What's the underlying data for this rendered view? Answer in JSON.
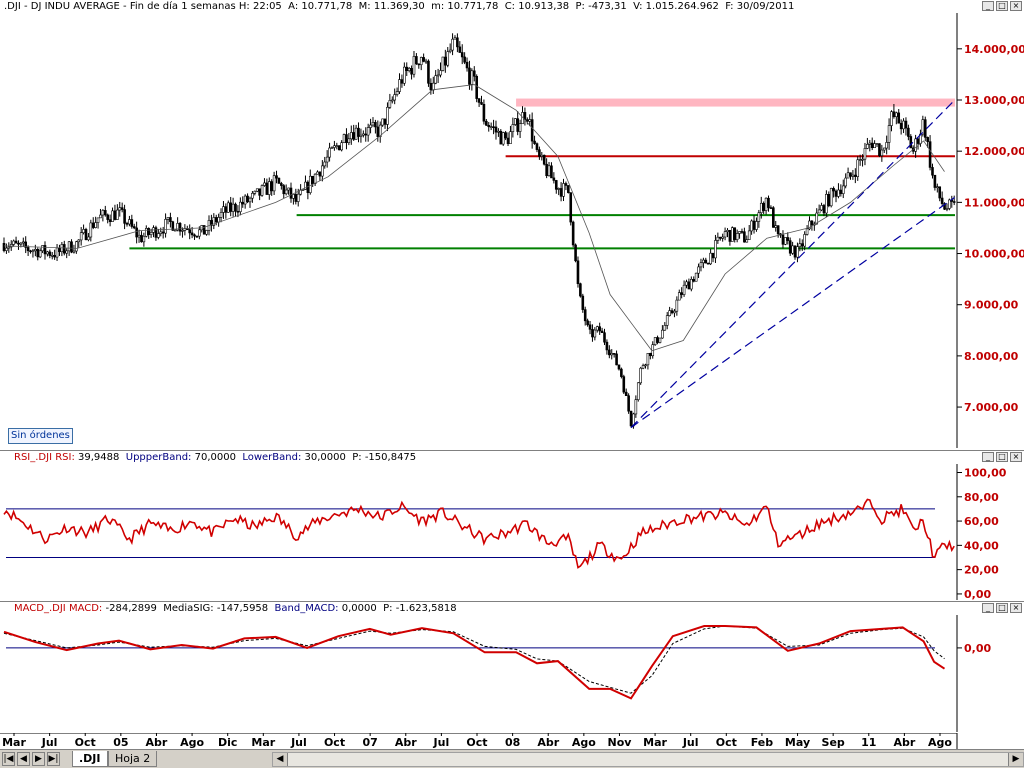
{
  "price_header": {
    "symbol": ".DJI",
    "description": "DJ INDU AVERAGE",
    "period": "Fin de día 1 semanas",
    "H_label": "H:",
    "H": "22:05",
    "A_label": "A:",
    "A": "10.771,78",
    "M_label": "M:",
    "M": "11.369,30",
    "m_label": "m:",
    "m": "10.771,78",
    "C_label": "C:",
    "C": "10.913,38",
    "P_label": "P:",
    "P": "-473,31",
    "V_label": "V:",
    "V": "1.015.264.962",
    "F_label": "F:",
    "F": "30/09/2011"
  },
  "rsi_header": {
    "name": "RSI_.DJI",
    "rsi_label": "RSI:",
    "rsi": "39,9488",
    "upper_label": "UppperBand:",
    "upper": "70,0000",
    "lower_label": "LowerBand:",
    "lower": "30,0000",
    "p_label": "P:",
    "p": "-150,8475"
  },
  "macd_header": {
    "name": "MACD_.DJI",
    "macd_label": "MACD:",
    "macd": "-284,2899",
    "sig_label": "MediaSIG:",
    "sig": "-147,5958",
    "band_label": "Band_MACD:",
    "band": "0,0000",
    "p_label": "P:",
    "p": "-1.623,5818"
  },
  "window_buttons": {
    "minimize": "_",
    "maximize": "□",
    "close": "×"
  },
  "orders_button": "Sin órdenes",
  "sheet_tabs": [
    ".DJI",
    "Hoja 2"
  ],
  "nav_glyphs": [
    "|◀",
    "◀",
    "▶",
    "▶|"
  ],
  "colors": {
    "price_axis_text": "#c00000",
    "candle": "#000000",
    "resistance_pink": "#ffb6c1",
    "resistance_red": "#c00000",
    "support_green": "#008000",
    "trend_blue": "#0000a0",
    "rsi_line": "#d00000",
    "band_line": "#000080",
    "macd_line": "#d00000",
    "signal_line": "#000000"
  },
  "x_axis_labels": [
    "Mar",
    "Jul",
    "Oct",
    "05",
    "Abr",
    "Ago",
    "Dic",
    "Mar",
    "Jul",
    "Oct",
    "07",
    "Abr",
    "Jul",
    "Oct",
    "08",
    "Abr",
    "Ago",
    "Nov",
    "Mar",
    "Jul",
    "Oct",
    "Feb",
    "May",
    "Sep",
    "11",
    "Abr",
    "Ago"
  ],
  "chart_data": [
    {
      "type": "candlestick",
      "title": "DJ INDU AVERAGE",
      "ylim": [
        6200,
        14700
      ],
      "y_ticks": [
        "14.000,00",
        "13.000,00",
        "12.000,00",
        "11.000,00",
        "10.000,00",
        "9.000,00",
        "8.000,00",
        "7.000,00"
      ],
      "y_tick_values": [
        14000,
        13000,
        12000,
        11000,
        10000,
        9000,
        8000,
        7000
      ],
      "close_path": [
        [
          "2004-03",
          10200
        ],
        [
          "2004-05",
          10100
        ],
        [
          "2004-08",
          10000
        ],
        [
          "2004-10",
          10200
        ],
        [
          "2004-12",
          10700
        ],
        [
          "2005-02",
          10800
        ],
        [
          "2005-04",
          10300
        ],
        [
          "2005-07",
          10600
        ],
        [
          "2005-10",
          10400
        ],
        [
          "2005-12",
          10800
        ],
        [
          "2006-03",
          11100
        ],
        [
          "2006-05",
          11400
        ],
        [
          "2006-07",
          11000
        ],
        [
          "2006-09",
          11600
        ],
        [
          "2006-12",
          12400
        ],
        [
          "2007-03",
          12400
        ],
        [
          "2007-05",
          13400
        ],
        [
          "2007-07",
          13900
        ],
        [
          "2007-08",
          13200
        ],
        [
          "2007-10",
          14100
        ],
        [
          "2007-12",
          13300
        ],
        [
          "2008-01",
          12600
        ],
        [
          "2008-03",
          12200
        ],
        [
          "2008-05",
          12800
        ],
        [
          "2008-06",
          11900
        ],
        [
          "2008-08",
          11300
        ],
        [
          "2008-09",
          11200
        ],
        [
          "2008-10",
          9200
        ],
        [
          "2008-11",
          8400
        ],
        [
          "2008-12",
          8500
        ],
        [
          "2009-02",
          7700
        ],
        [
          "2009-03",
          6700
        ],
        [
          "2009-04",
          7800
        ],
        [
          "2009-06",
          8500
        ],
        [
          "2009-08",
          9300
        ],
        [
          "2009-10",
          9800
        ],
        [
          "2009-12",
          10400
        ],
        [
          "2010-02",
          10300
        ],
        [
          "2010-04",
          11100
        ],
        [
          "2010-05",
          10300
        ],
        [
          "2010-07",
          10000
        ],
        [
          "2010-08",
          10500
        ],
        [
          "2010-10",
          11100
        ],
        [
          "2010-12",
          11500
        ],
        [
          "2011-02",
          12200
        ],
        [
          "2011-03",
          12000
        ],
        [
          "2011-04",
          12700
        ],
        [
          "2011-05",
          12500
        ],
        [
          "2011-06",
          12000
        ],
        [
          "2011-07",
          12600
        ],
        [
          "2011-08",
          11300
        ],
        [
          "2011-09",
          10900
        ]
      ],
      "moving_average": [
        [
          "2004-03",
          10150
        ],
        [
          "2004-10",
          10100
        ],
        [
          "2005-04",
          10450
        ],
        [
          "2005-10",
          10500
        ],
        [
          "2006-05",
          11000
        ],
        [
          "2006-10",
          11500
        ],
        [
          "2007-03",
          12300
        ],
        [
          "2007-08",
          13200
        ],
        [
          "2007-12",
          13300
        ],
        [
          "2008-04",
          12800
        ],
        [
          "2008-08",
          11900
        ],
        [
          "2008-11",
          10400
        ],
        [
          "2009-01",
          9200
        ],
        [
          "2009-05",
          8100
        ],
        [
          "2009-08",
          8300
        ],
        [
          "2009-12",
          9600
        ],
        [
          "2010-04",
          10300
        ],
        [
          "2010-08",
          10500
        ],
        [
          "2010-12",
          11000
        ],
        [
          "2011-04",
          11700
        ],
        [
          "2011-07",
          12200
        ],
        [
          "2011-09",
          11600
        ]
      ],
      "horizontal_levels": [
        {
          "role": "resistance-zone",
          "value": 12950,
          "start": "2008-04"
        },
        {
          "role": "resistance",
          "value": 11900,
          "start": "2008-03"
        },
        {
          "role": "support",
          "value": 10750,
          "start": "2006-07"
        },
        {
          "role": "support",
          "value": 10100,
          "start": "2005-03"
        }
      ],
      "trend_lines": [
        {
          "from": [
            "2009-03",
            6600
          ],
          "to": [
            "2011-09",
            12800
          ]
        },
        {
          "from": [
            "2009-03",
            6600
          ],
          "to": [
            "2011-09",
            10900
          ]
        }
      ]
    },
    {
      "type": "line",
      "title": "RSI_.DJI",
      "ylim": [
        -5,
        107
      ],
      "y_ticks": [
        "100,00",
        "80,00",
        "60,00",
        "40,00",
        "20,00",
        "0,00"
      ],
      "y_tick_values": [
        100,
        80,
        60,
        40,
        20,
        0
      ],
      "bands": [
        70,
        30
      ],
      "series": [
        {
          "name": "RSI",
          "points": [
            [
              "2004-03",
              70
            ],
            [
              "2004-05",
              58
            ],
            [
              "2004-07",
              45
            ],
            [
              "2004-09",
              55
            ],
            [
              "2004-11",
              50
            ],
            [
              "2005-01",
              62
            ],
            [
              "2005-03",
              45
            ],
            [
              "2005-05",
              58
            ],
            [
              "2005-07",
              52
            ],
            [
              "2005-09",
              60
            ],
            [
              "2005-11",
              50
            ],
            [
              "2006-01",
              62
            ],
            [
              "2006-03",
              55
            ],
            [
              "2006-05",
              64
            ],
            [
              "2006-07",
              48
            ],
            [
              "2006-09",
              60
            ],
            [
              "2006-11",
              66
            ],
            [
              "2007-01",
              70
            ],
            [
              "2007-03",
              63
            ],
            [
              "2007-05",
              72
            ],
            [
              "2007-07",
              60
            ],
            [
              "2007-09",
              67
            ],
            [
              "2007-11",
              55
            ],
            [
              "2008-01",
              45
            ],
            [
              "2008-03",
              50
            ],
            [
              "2008-05",
              58
            ],
            [
              "2008-07",
              42
            ],
            [
              "2008-09",
              45
            ],
            [
              "2008-10",
              20
            ],
            [
              "2008-12",
              40
            ],
            [
              "2009-02",
              28
            ],
            [
              "2009-04",
              50
            ],
            [
              "2009-06",
              56
            ],
            [
              "2009-08",
              62
            ],
            [
              "2009-10",
              64
            ],
            [
              "2009-12",
              66
            ],
            [
              "2010-02",
              56
            ],
            [
              "2010-04",
              72
            ],
            [
              "2010-05",
              42
            ],
            [
              "2010-07",
              48
            ],
            [
              "2010-09",
              58
            ],
            [
              "2010-11",
              64
            ],
            [
              "2011-01",
              70
            ],
            [
              "2011-02",
              76
            ],
            [
              "2011-03",
              62
            ],
            [
              "2011-05",
              70
            ],
            [
              "2011-06",
              52
            ],
            [
              "2011-07",
              60
            ],
            [
              "2011-08",
              30
            ],
            [
              "2011-09",
              40
            ]
          ]
        }
      ]
    },
    {
      "type": "line",
      "title": "MACD_.DJI",
      "ylim": [
        -1150,
        450
      ],
      "y_ticks": [
        "0,00"
      ],
      "y_tick_values": [
        0
      ],
      "series": [
        {
          "name": "MACD",
          "points": [
            [
              "2004-03",
              220
            ],
            [
              "2004-06",
              80
            ],
            [
              "2004-09",
              -30
            ],
            [
              "2004-12",
              60
            ],
            [
              "2005-02",
              100
            ],
            [
              "2005-05",
              -20
            ],
            [
              "2005-08",
              40
            ],
            [
              "2005-11",
              -10
            ],
            [
              "2006-02",
              130
            ],
            [
              "2006-05",
              150
            ],
            [
              "2006-08",
              0
            ],
            [
              "2006-11",
              160
            ],
            [
              "2007-02",
              260
            ],
            [
              "2007-04",
              180
            ],
            [
              "2007-07",
              270
            ],
            [
              "2007-10",
              200
            ],
            [
              "2008-01",
              -60
            ],
            [
              "2008-04",
              -60
            ],
            [
              "2008-06",
              -210
            ],
            [
              "2008-08",
              -180
            ],
            [
              "2008-11",
              -560
            ],
            [
              "2009-01",
              -560
            ],
            [
              "2009-03",
              -690
            ],
            [
              "2009-05",
              -250
            ],
            [
              "2009-07",
              160
            ],
            [
              "2009-10",
              300
            ],
            [
              "2009-12",
              300
            ],
            [
              "2010-03",
              280
            ],
            [
              "2010-06",
              -40
            ],
            [
              "2010-09",
              60
            ],
            [
              "2010-12",
              230
            ],
            [
              "2011-03",
              260
            ],
            [
              "2011-05",
              280
            ],
            [
              "2011-07",
              90
            ],
            [
              "2011-08",
              -190
            ],
            [
              "2011-09",
              -284
            ]
          ]
        },
        {
          "name": "MediaSIG",
          "points": [
            [
              "2004-03",
              200
            ],
            [
              "2004-06",
              100
            ],
            [
              "2004-09",
              0
            ],
            [
              "2004-12",
              40
            ],
            [
              "2005-02",
              80
            ],
            [
              "2005-05",
              10
            ],
            [
              "2005-08",
              30
            ],
            [
              "2005-11",
              10
            ],
            [
              "2006-02",
              100
            ],
            [
              "2006-05",
              130
            ],
            [
              "2006-08",
              30
            ],
            [
              "2006-11",
              130
            ],
            [
              "2007-02",
              230
            ],
            [
              "2007-04",
              200
            ],
            [
              "2007-07",
              250
            ],
            [
              "2007-10",
              220
            ],
            [
              "2008-01",
              20
            ],
            [
              "2008-04",
              -20
            ],
            [
              "2008-06",
              -150
            ],
            [
              "2008-08",
              -180
            ],
            [
              "2008-11",
              -460
            ],
            [
              "2009-01",
              -540
            ],
            [
              "2009-03",
              -620
            ],
            [
              "2009-05",
              -380
            ],
            [
              "2009-07",
              60
            ],
            [
              "2009-10",
              260
            ],
            [
              "2009-12",
              300
            ],
            [
              "2010-03",
              270
            ],
            [
              "2010-06",
              20
            ],
            [
              "2010-09",
              40
            ],
            [
              "2010-12",
              200
            ],
            [
              "2011-03",
              250
            ],
            [
              "2011-05",
              270
            ],
            [
              "2011-07",
              150
            ],
            [
              "2011-08",
              -40
            ],
            [
              "2011-09",
              -148
            ]
          ]
        }
      ]
    }
  ]
}
